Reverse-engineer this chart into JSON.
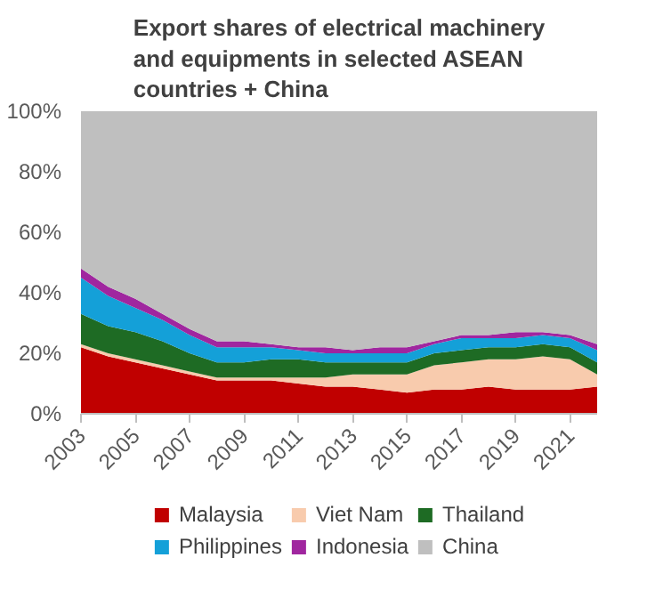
{
  "chart_data": {
    "type": "area",
    "stacked": true,
    "title": "Export shares of electrical machinery\nand equipments in selected ASEAN\ncountries + China",
    "x": [
      2003,
      2004,
      2005,
      2006,
      2007,
      2008,
      2009,
      2010,
      2011,
      2012,
      2013,
      2014,
      2015,
      2016,
      2017,
      2018,
      2019,
      2020,
      2021,
      2022
    ],
    "xlim": [
      2003,
      2022
    ],
    "xticks": [
      2003,
      2005,
      2007,
      2009,
      2011,
      2013,
      2015,
      2017,
      2019,
      2021
    ],
    "ylim": [
      0,
      100
    ],
    "yticks": [
      {
        "value": 0,
        "label": "0%"
      },
      {
        "value": 20,
        "label": "20%"
      },
      {
        "value": 40,
        "label": "40%"
      },
      {
        "value": 60,
        "label": "60%"
      },
      {
        "value": 80,
        "label": "80%"
      },
      {
        "value": 100,
        "label": "100%"
      }
    ],
    "grid": false,
    "legend": "bottom",
    "series": [
      {
        "name": "Malaysia",
        "color": "#c00000",
        "values": [
          22,
          19,
          17,
          15,
          13,
          11,
          11,
          11,
          10,
          9,
          9,
          8,
          7,
          8,
          8,
          9,
          8,
          8,
          8,
          9
        ]
      },
      {
        "name": "Viet Nam",
        "color": "#f8cbad",
        "values": [
          1,
          1,
          1,
          1,
          1,
          1,
          1,
          1,
          2,
          3,
          4,
          5,
          6,
          8,
          9,
          9,
          10,
          11,
          10,
          4
        ]
      },
      {
        "name": "Thailand",
        "color": "#1e6b24",
        "values": [
          10,
          9,
          9,
          8,
          6,
          5,
          5,
          6,
          6,
          5,
          4,
          4,
          4,
          4,
          4,
          4,
          4,
          4,
          4,
          4
        ]
      },
      {
        "name": "Philippines",
        "color": "#14a0d8",
        "values": [
          12,
          10,
          8,
          7,
          6,
          5,
          5,
          4,
          3,
          3,
          3,
          3,
          3,
          3,
          4,
          3,
          3,
          3,
          3,
          4
        ]
      },
      {
        "name": "Indonesia",
        "color": "#a0269f",
        "values": [
          3,
          3,
          3,
          2,
          2,
          2,
          2,
          1,
          1,
          2,
          1,
          2,
          2,
          1,
          1,
          1,
          2,
          1,
          1,
          2
        ]
      },
      {
        "name": "China",
        "color": "#bfbfbf",
        "values": [
          52,
          58,
          62,
          67,
          72,
          76,
          76,
          77,
          78,
          78,
          79,
          78,
          78,
          76,
          74,
          74,
          73,
          73,
          74,
          77
        ]
      }
    ]
  }
}
